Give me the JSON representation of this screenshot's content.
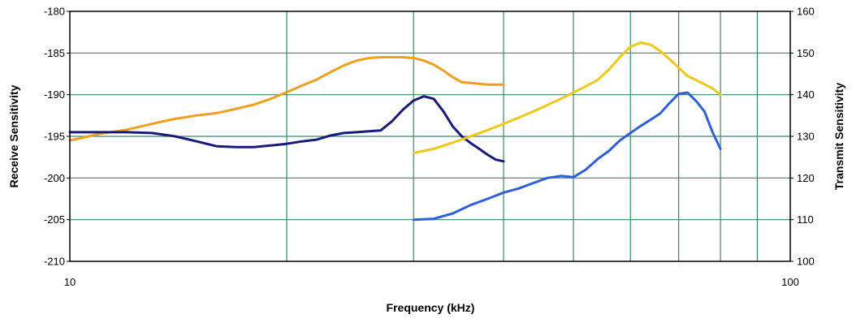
{
  "chart_data": {
    "type": "line",
    "title": "",
    "xlabel": "Frequency (kHz)",
    "ylabel_left": "Receive Sensitivity",
    "ylabel_right": "Transmit Sensitivity",
    "x_scale": "log",
    "xlim": [
      10,
      100
    ],
    "ylim_left": [
      -210,
      -180
    ],
    "ylim_right": [
      100,
      160
    ],
    "grid": true,
    "legend": "none",
    "x_ticks": [
      {
        "value": 10,
        "label": "10"
      },
      {
        "value": 100,
        "label": "100"
      }
    ],
    "x_gridlines": [
      20,
      30,
      40,
      50,
      60,
      70,
      80,
      90
    ],
    "y_left_ticks": [
      {
        "value": -180,
        "label": "-180"
      },
      {
        "value": -185,
        "label": "-185"
      },
      {
        "value": -190,
        "label": "-190"
      },
      {
        "value": -195,
        "label": "-195"
      },
      {
        "value": -200,
        "label": "-200"
      },
      {
        "value": -205,
        "label": "-205"
      },
      {
        "value": -210,
        "label": "-210"
      }
    ],
    "y_right_ticks": [
      {
        "value": 160,
        "label": "160"
      },
      {
        "value": 150,
        "label": "150"
      },
      {
        "value": 140,
        "label": "140"
      },
      {
        "value": 130,
        "label": "130"
      },
      {
        "value": 120,
        "label": "120"
      },
      {
        "value": 110,
        "label": "110"
      },
      {
        "value": 100,
        "label": "100"
      }
    ],
    "colors": {
      "grid": "#3a8a6a",
      "frame": "#000000"
    },
    "series": [
      {
        "axis": "left",
        "color": "#f0a020",
        "x": [
          10,
          11,
          12,
          13,
          14,
          15,
          16,
          17,
          18,
          19,
          20,
          21,
          22,
          23,
          24,
          25,
          26,
          27,
          28,
          29,
          30,
          31,
          32,
          33,
          34,
          35,
          36,
          37,
          38,
          39,
          40
        ],
        "y": [
          -195.5,
          -194.7,
          -194.2,
          -193.5,
          -192.9,
          -192.5,
          -192.2,
          -191.7,
          -191.2,
          -190.5,
          -189.7,
          -188.9,
          -188.2,
          -187.3,
          -186.5,
          -185.9,
          -185.6,
          -185.5,
          -185.5,
          -185.5,
          -185.6,
          -185.9,
          -186.4,
          -187.1,
          -187.9,
          -188.5,
          -188.6,
          -188.7,
          -188.8,
          -188.8,
          -188.8
        ]
      },
      {
        "axis": "left",
        "color": "#1a1a7a",
        "x": [
          10,
          11,
          12,
          13,
          14,
          15,
          16,
          17,
          18,
          19,
          20,
          21,
          22,
          23,
          24,
          25,
          26,
          27,
          28,
          29,
          30,
          31,
          32,
          33,
          34,
          35,
          36,
          37,
          38,
          39,
          40
        ],
        "y": [
          -194.5,
          -194.5,
          -194.5,
          -194.6,
          -195.0,
          -195.6,
          -196.2,
          -196.3,
          -196.3,
          -196.1,
          -195.9,
          -195.6,
          -195.4,
          -194.9,
          -194.6,
          -194.5,
          -194.4,
          -194.3,
          -193.2,
          -191.8,
          -190.7,
          -190.2,
          -190.5,
          -192.0,
          -193.8,
          -195.0,
          -195.8,
          -196.5,
          -197.2,
          -197.8,
          -198.0
        ]
      },
      {
        "axis": "right",
        "color": "#f0c818",
        "x": [
          30,
          32,
          34,
          36,
          38,
          40,
          42,
          44,
          46,
          48,
          50,
          52,
          54,
          56,
          58,
          60,
          62,
          64,
          66,
          68,
          70,
          72,
          74,
          76,
          78,
          80
        ],
        "y": [
          126,
          127,
          128.5,
          130,
          131.5,
          133,
          134.5,
          136,
          137.5,
          139,
          140.5,
          142,
          143.5,
          146,
          149,
          151.5,
          152.5,
          152.0,
          150.5,
          148.5,
          146.5,
          144.5,
          143.5,
          142.5,
          141.5,
          140.0
        ]
      },
      {
        "axis": "right",
        "color": "#3060d8",
        "x": [
          30,
          32,
          34,
          36,
          38,
          40,
          42,
          44,
          46,
          48,
          50,
          52,
          54,
          56,
          58,
          60,
          62,
          64,
          66,
          68,
          70,
          72,
          74,
          76,
          78,
          80
        ],
        "y": [
          110,
          110.2,
          111.5,
          113.5,
          115,
          116.5,
          117.5,
          118.8,
          120.0,
          120.5,
          120.2,
          122,
          124.5,
          126.5,
          129,
          130.8,
          132.5,
          134,
          135.5,
          138,
          140.2,
          140.5,
          138.5,
          136.0,
          131.0,
          127.0
        ]
      }
    ]
  }
}
